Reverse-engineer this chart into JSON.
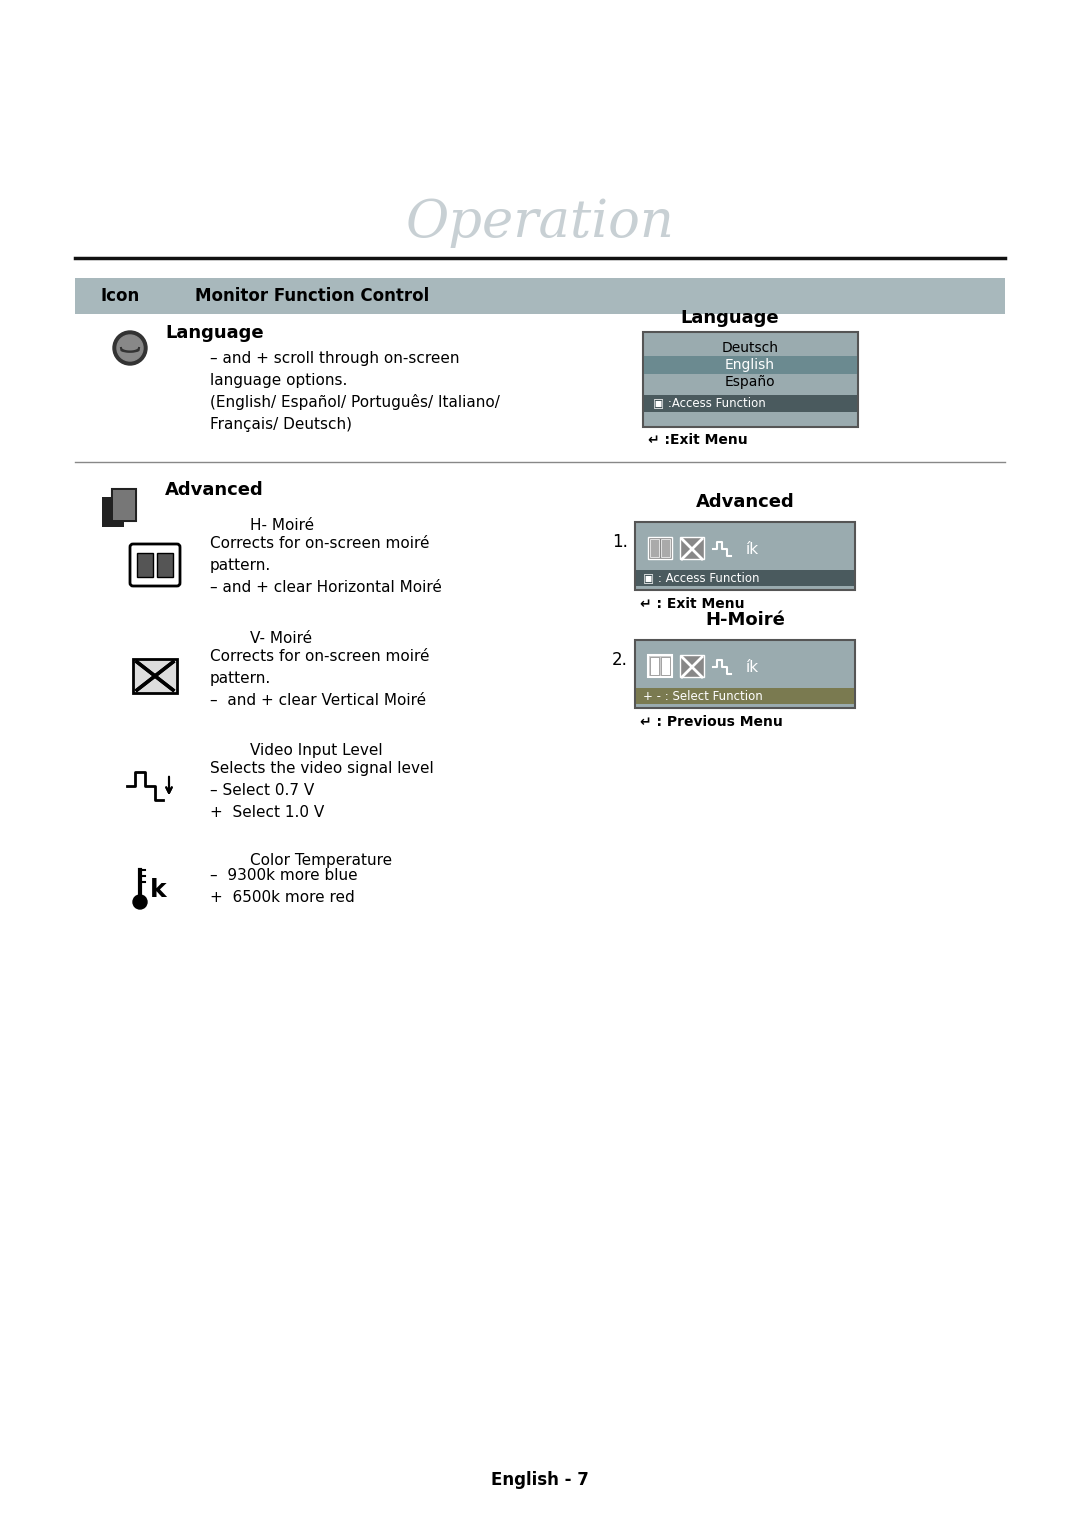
{
  "page_title": "Operation",
  "title_color": "#c8d0d4",
  "title_fontsize": 38,
  "bg_color": "#ffffff",
  "header_bg": "#a8b8bc",
  "header_fontsize": 12,
  "lang_lines": [
    "– and + scroll through on-screen",
    "language options.",
    "(English/ Español/ Português/ Italiano/",
    "Français/ Deutsch)"
  ],
  "sidebar_lang_title": "Language",
  "sidebar_lang_items": [
    "Deutsch",
    "English",
    "Españo"
  ],
  "sidebar_lang_highlight": 1,
  "sidebar_lang_access": "▣ :Access Function",
  "sidebar_lang_exit": "↵ :Exit Menu",
  "adv_label": "Advanced",
  "hm_label": "H- Moiré",
  "hm_lines": [
    "Corrects for on-screen moiré",
    "pattern.",
    "– and + clear Horizontal Moiré"
  ],
  "vm_label": "V- Moiré",
  "vm_lines": [
    "Corrects for on-screen moiré",
    "pattern.",
    "–  and + clear Vertical Moiré"
  ],
  "vi_label": "Video Input Level",
  "vi_lines": [
    "Selects the video signal level",
    "– Select 0.7 V",
    "+  Select 1.0 V"
  ],
  "ct_label": "Color Temperature",
  "ct_lines": [
    "–  9300k more blue",
    "+  6500k more red"
  ],
  "adv_sb_title": "Advanced",
  "adv_sb_num": "1.",
  "adv_sb_access": "▣ : Access Function",
  "adv_sb_exit": "↵ : Exit Menu",
  "hm_sb_title": "H-Moiré",
  "hm_sb_num": "2.",
  "hm_sb_select": "+ - : Select Function",
  "hm_sb_prev": "↵ : Previous Menu",
  "footer": "English - 7",
  "sidebar_bg": "#9aabaf",
  "sidebar_dark_row": "#6b8a90",
  "access_bar_bg": "#4a5a5e",
  "select_bar_bg": "#7a7a50",
  "divider_color": "#888888",
  "hline_color": "#111111"
}
